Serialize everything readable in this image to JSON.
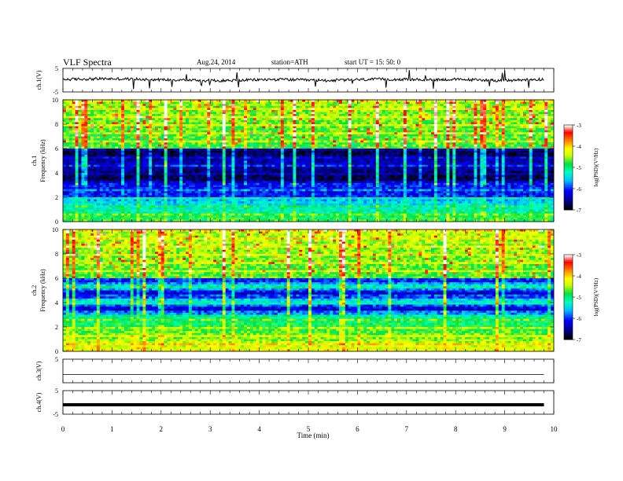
{
  "header": {
    "title": "VLF  Spectra",
    "date": "Aug.24, 2014",
    "station": "station=ATH",
    "start": "start  UT  =    15: 50: 0"
  },
  "colors": {
    "background": "#ffffff",
    "axis": "#000000",
    "trace": "#000000",
    "colormap": [
      "#000000",
      "#00008b",
      "#0000ff",
      "#00bfff",
      "#00ffc0",
      "#00e040",
      "#c8ff00",
      "#ffff00",
      "#ff8000",
      "#ff0000",
      "#ffffff"
    ]
  },
  "chart_data": [
    {
      "type": "line",
      "name": "ch1-waveform",
      "ylabel": "ch.1(V)",
      "yticks": [
        "5",
        "-5"
      ],
      "ylim": [
        -5,
        5
      ],
      "x": [
        0,
        0.5,
        1,
        1.5,
        2,
        2.5,
        3,
        3.5,
        4,
        4.5,
        5,
        5.5,
        6,
        6.5,
        7,
        7.5,
        8,
        8.5,
        9,
        9.5,
        9.8
      ],
      "y": [
        0.3,
        0.5,
        0.6,
        0.4,
        0.2,
        0.1,
        -0.2,
        -0.1,
        0.2,
        0.3,
        0.0,
        -0.1,
        0.2,
        0.4,
        0.3,
        0.2,
        0.3,
        0.1,
        -0.2,
        0.3,
        0.4
      ]
    },
    {
      "type": "heatmap",
      "name": "ch1-spectrogram",
      "ylabel": "ch.1\nFrequency  (kHz)",
      "yticks": [
        "0",
        "2",
        "4",
        "6",
        "8",
        "10"
      ],
      "ylim": [
        0,
        10
      ],
      "xlim": [
        0,
        10
      ],
      "colorbar_label": "log(PSD)(V²/Hz)",
      "colorbar_ticks": [
        "-3",
        "-4",
        "-5",
        "-6",
        "-7"
      ],
      "colorbar_range": [
        -7,
        -3
      ]
    },
    {
      "type": "heatmap",
      "name": "ch2-spectrogram",
      "ylabel": "ch.2\nFrequency  (kHz)",
      "yticks": [
        "0",
        "2",
        "4",
        "6",
        "8",
        "10"
      ],
      "ylim": [
        0,
        10
      ],
      "xlim": [
        0,
        10
      ],
      "colorbar_label": "log(PSD)(V²/Hz)",
      "colorbar_ticks": [
        "-3",
        "-4",
        "-5",
        "-6",
        "-7"
      ],
      "colorbar_range": [
        -7,
        -3
      ]
    },
    {
      "type": "line",
      "name": "ch3-waveform",
      "ylabel": "ch.3(V)",
      "yticks": [
        "5",
        ""
      ],
      "ylim": [
        -5,
        5
      ],
      "x": [
        0,
        9.8
      ],
      "y": [
        -1.5,
        -1.5
      ]
    },
    {
      "type": "line",
      "name": "ch4-waveform",
      "ylabel": "ch.4(V)",
      "yticks": [
        "5",
        "-5"
      ],
      "ylim": [
        -5,
        5
      ],
      "x": [
        0,
        9.8
      ],
      "y": [
        -1.0,
        -1.0
      ]
    }
  ],
  "xaxis": {
    "label": "Time  (min)",
    "ticks": [
      "0",
      "1",
      "2",
      "3",
      "4",
      "5",
      "6",
      "7",
      "8",
      "9",
      "10"
    ],
    "range": [
      0,
      10
    ]
  }
}
